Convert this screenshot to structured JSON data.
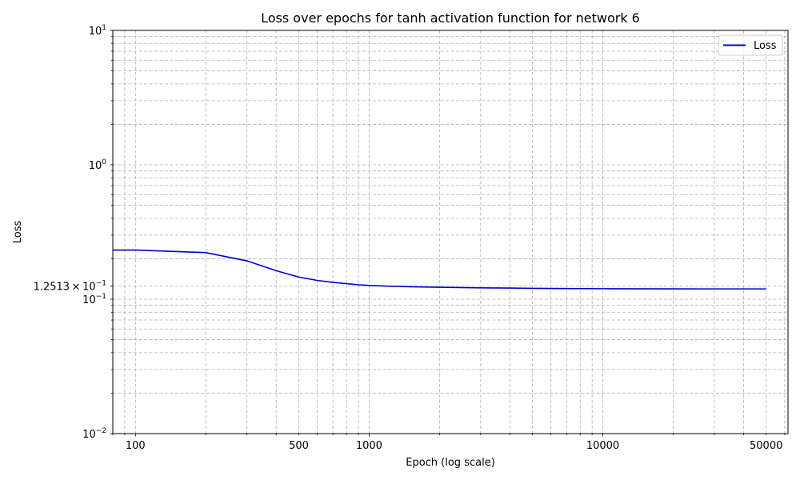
{
  "chart_data": {
    "type": "line",
    "title": "Loss over epochs for tanh activation function for network 6",
    "xlabel": "Epoch (log scale)",
    "ylabel": "Loss",
    "xscale": "log",
    "yscale": "log",
    "xlim": [
      80,
      62000
    ],
    "ylim": [
      0.01,
      10
    ],
    "x_tick_labels": [
      {
        "value": 100,
        "label": "100"
      },
      {
        "value": 500,
        "label": "500"
      },
      {
        "value": 1000,
        "label": "1000"
      },
      {
        "value": 10000,
        "label": "10000"
      },
      {
        "value": 50000,
        "label": "50000"
      }
    ],
    "y_tick_labels": [
      {
        "value": 0.01,
        "base": "10",
        "exp": "−2"
      },
      {
        "value": 0.1,
        "base": "10",
        "exp": "−1"
      },
      {
        "value": 1,
        "base": "10",
        "exp": "0"
      },
      {
        "value": 10,
        "base": "10",
        "exp": "1"
      }
    ],
    "y_annotation": {
      "value": 0.12513,
      "prefix": "1.2513 × 10",
      "exp": "−1"
    },
    "grid": true,
    "legend": {
      "position": "top-right",
      "entries": [
        "Loss"
      ]
    },
    "series": [
      {
        "name": "Loss",
        "color": "#0000cc",
        "x": [
          80,
          100,
          200,
          300,
          400,
          500,
          600,
          700,
          800,
          900,
          1000,
          1200,
          1500,
          2000,
          3000,
          4000,
          5000,
          7000,
          10000,
          20000,
          30000,
          50000
        ],
        "y": [
          0.232,
          0.232,
          0.222,
          0.193,
          0.163,
          0.146,
          0.138,
          0.1335,
          0.1305,
          0.128,
          0.1265,
          0.125,
          0.1238,
          0.1227,
          0.1215,
          0.121,
          0.1205,
          0.1201,
          0.1197,
          0.1194,
          0.1193,
          0.1193
        ]
      }
    ]
  }
}
